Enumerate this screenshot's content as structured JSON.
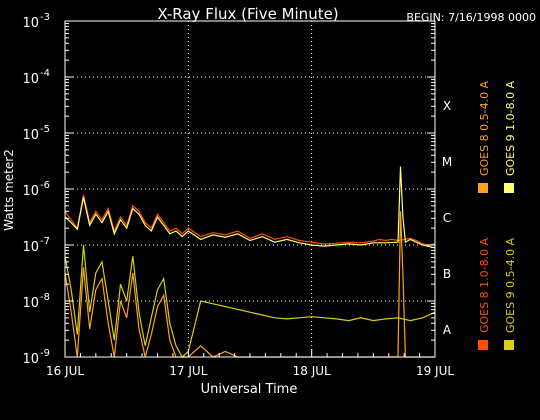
{
  "chart_data": {
    "type": "line",
    "title": "X-Ray Flux (Five Minute)",
    "subtitle": "BEGIN: 7/16/1998 0000",
    "xlabel": "Universal Time",
    "ylabel": "Watts meter2",
    "x_ticks": [
      "16 JUL",
      "17 JUL",
      "18 JUL",
      "19 JUL"
    ],
    "xlim_days": [
      16,
      19
    ],
    "y_log": true,
    "ylim_exponent": [
      -9,
      -3
    ],
    "y_tick_base": "10",
    "y_tick_exponents": [
      "-9",
      "-8",
      "-7",
      "-6",
      "-5",
      "-4",
      "-3"
    ],
    "flare_classes": [
      "A",
      "B",
      "C",
      "M",
      "X"
    ],
    "grid": true,
    "legend_position": "right (vertical)",
    "colors": {
      "background": "#000000",
      "axes": "#ffffff",
      "goes8_long": "#ff4e00",
      "goes8_short": "#ffa024",
      "goes9_long": "#ffff73",
      "goes9_short": "#d8cf10"
    },
    "series": [
      {
        "name": "GOES 8 1.0-8.0 A",
        "color": "#ff4e00",
        "x": [
          16.0,
          16.05,
          16.1,
          16.15,
          16.2,
          16.25,
          16.3,
          16.35,
          16.4,
          16.45,
          16.5,
          16.55,
          16.6,
          16.65,
          16.7,
          16.75,
          16.8,
          16.85,
          16.9,
          16.95,
          17.0,
          17.1,
          17.2,
          17.3,
          17.4,
          17.5,
          17.6,
          17.7,
          17.8,
          17.9,
          18.0,
          18.1,
          18.2,
          18.3,
          18.4,
          18.5,
          18.55,
          18.6,
          18.65,
          18.7,
          18.75,
          18.8,
          18.85,
          18.9,
          18.95,
          19.0
        ],
        "y": [
          -6.4,
          -6.55,
          -6.7,
          -6.1,
          -6.6,
          -6.4,
          -6.55,
          -6.35,
          -6.75,
          -6.5,
          -6.65,
          -6.3,
          -6.4,
          -6.6,
          -6.7,
          -6.45,
          -6.6,
          -6.75,
          -6.7,
          -6.8,
          -6.7,
          -6.85,
          -6.78,
          -6.82,
          -6.75,
          -6.88,
          -6.8,
          -6.9,
          -6.85,
          -6.92,
          -6.95,
          -6.98,
          -6.97,
          -6.95,
          -6.96,
          -6.93,
          -6.9,
          -6.92,
          -6.9,
          -6.92,
          -6.9,
          -6.88,
          -6.92,
          -6.98,
          -7.0,
          -6.98
        ]
      },
      {
        "name": "GOES 8 0.5-4.0 A",
        "color": "#ffa024",
        "x": [
          16.0,
          16.05,
          16.1,
          16.15,
          16.2,
          16.25,
          16.3,
          16.35,
          16.4,
          16.45,
          16.5,
          16.55,
          16.6,
          16.65,
          16.7,
          16.75,
          16.8,
          16.85,
          16.9,
          16.95,
          17.0,
          17.1,
          17.2,
          17.3,
          17.4,
          17.5,
          17.6,
          17.7,
          17.8,
          17.9,
          18.0,
          18.1,
          18.2,
          18.3,
          18.4,
          18.5,
          18.6,
          18.7,
          18.72,
          18.74,
          18.76,
          18.8,
          18.9,
          19.0
        ],
        "y": [
          -7.5,
          -8.2,
          -9.0,
          -7.4,
          -8.5,
          -7.8,
          -7.6,
          -8.4,
          -9.0,
          -8.0,
          -8.3,
          -7.5,
          -8.5,
          -9.0,
          -8.6,
          -8.1,
          -7.9,
          -8.7,
          -9.0,
          -9.0,
          -9.0,
          -8.8,
          -9.0,
          -8.9,
          -9.0,
          -9.0,
          -9.0,
          -9.0,
          -9.0,
          -9.0,
          -9.0,
          -9.0,
          -9.0,
          -9.0,
          -9.0,
          -9.0,
          -9.0,
          -9.0,
          -6.4,
          -7.5,
          -9.0,
          -9.0,
          -9.0,
          -9.0
        ]
      },
      {
        "name": "GOES 9 1.0-8.0 A",
        "color": "#ffff73",
        "x": [
          16.0,
          16.05,
          16.1,
          16.15,
          16.2,
          16.25,
          16.3,
          16.35,
          16.4,
          16.45,
          16.5,
          16.55,
          16.6,
          16.65,
          16.7,
          16.75,
          16.8,
          16.85,
          16.9,
          16.95,
          17.0,
          17.1,
          17.2,
          17.3,
          17.4,
          17.5,
          17.6,
          17.7,
          17.8,
          17.9,
          18.0,
          18.1,
          18.2,
          18.3,
          18.4,
          18.5,
          18.6,
          18.7,
          18.72,
          18.74,
          18.76,
          18.8,
          18.9,
          19.0
        ],
        "y": [
          -6.5,
          -6.6,
          -6.72,
          -6.15,
          -6.65,
          -6.45,
          -6.6,
          -6.4,
          -6.8,
          -6.55,
          -6.7,
          -6.35,
          -6.45,
          -6.65,
          -6.75,
          -6.5,
          -6.65,
          -6.8,
          -6.75,
          -6.85,
          -6.75,
          -6.9,
          -6.82,
          -6.86,
          -6.8,
          -6.92,
          -6.85,
          -6.95,
          -6.9,
          -6.96,
          -7.0,
          -7.02,
          -7.0,
          -6.98,
          -7.0,
          -6.96,
          -6.96,
          -6.95,
          -5.6,
          -6.5,
          -6.95,
          -6.9,
          -7.0,
          -7.05
        ]
      },
      {
        "name": "GOES 9 0.5-4.0 A",
        "color": "#d8cf10",
        "x": [
          16.0,
          16.05,
          16.1,
          16.15,
          16.2,
          16.25,
          16.3,
          16.35,
          16.4,
          16.45,
          16.5,
          16.55,
          16.6,
          16.65,
          16.7,
          16.75,
          16.8,
          16.85,
          16.9,
          16.95,
          17.0,
          17.1,
          17.2,
          17.3,
          17.4,
          17.5,
          17.6,
          17.7,
          17.8,
          17.9,
          18.0,
          18.1,
          18.2,
          18.3,
          18.4,
          18.5,
          18.6,
          18.7,
          18.8,
          18.9,
          19.0
        ],
        "y": [
          -7.2,
          -7.8,
          -8.6,
          -7.0,
          -8.2,
          -7.5,
          -7.3,
          -8.0,
          -8.7,
          -7.7,
          -8.0,
          -7.2,
          -8.2,
          -8.8,
          -8.3,
          -7.8,
          -7.6,
          -8.4,
          -8.8,
          -9.0,
          -8.9,
          -8.0,
          -8.05,
          -8.1,
          -8.15,
          -8.2,
          -8.25,
          -8.3,
          -8.32,
          -8.3,
          -8.28,
          -8.3,
          -8.32,
          -8.35,
          -8.3,
          -8.35,
          -8.32,
          -8.3,
          -8.35,
          -8.3,
          -8.2
        ]
      }
    ]
  }
}
